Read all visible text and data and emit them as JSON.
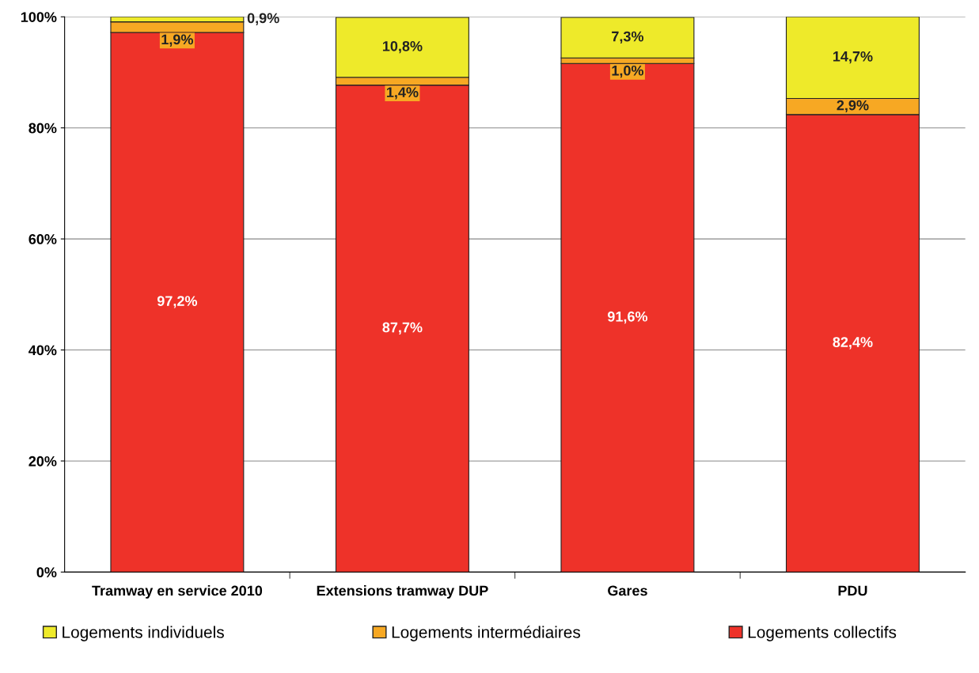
{
  "chart_data": {
    "type": "bar",
    "stacked": true,
    "categories": [
      "Tramway en service 2010",
      "Extensions tramway DUP",
      "Gares",
      "PDU"
    ],
    "series": [
      {
        "name": "Logements collectifs",
        "color": "#ee3229",
        "values": [
          97.2,
          87.7,
          91.6,
          82.4
        ]
      },
      {
        "name": "Logements intermédiaires",
        "color": "#f7a823",
        "values": [
          1.9,
          1.4,
          1.0,
          2.9
        ]
      },
      {
        "name": "Logements individuels",
        "color": "#eeea2a",
        "values": [
          0.9,
          10.8,
          7.3,
          14.7
        ]
      }
    ],
    "ylim": [
      0,
      100
    ],
    "yticks": [
      {
        "value": 0,
        "label": "0%"
      },
      {
        "value": 20,
        "label": "20%"
      },
      {
        "value": 40,
        "label": "40%"
      },
      {
        "value": 60,
        "label": "60%"
      },
      {
        "value": 80,
        "label": "80%"
      },
      {
        "value": 100,
        "label": "100%"
      }
    ],
    "grid": "y",
    "legend": "bottom",
    "value_labels": [
      [
        "97,2%",
        "87,7%",
        "91,6%",
        "82,4%"
      ],
      [
        "1,9%",
        "1,4%",
        "1,0%",
        "2,9%"
      ],
      [
        "0,9%",
        "10,8%",
        "7,3%",
        "14,7%"
      ]
    ]
  }
}
